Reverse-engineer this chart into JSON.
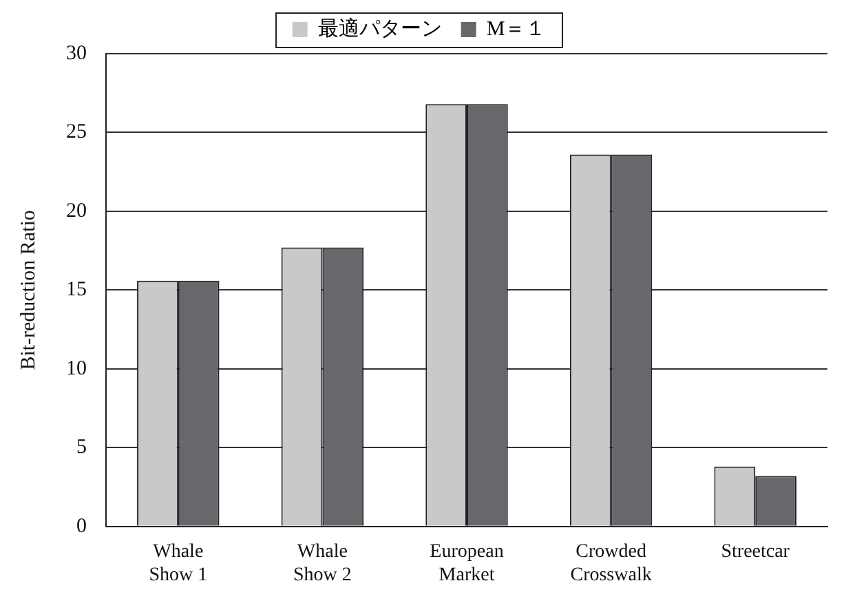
{
  "chart_data": {
    "type": "bar",
    "ylabel": "Bit-reduction Ratio",
    "categories": [
      "Whale\nShow 1",
      "Whale\nShow 2",
      "European\nMarket",
      "Crowded\nCrosswalk",
      "Streetcar"
    ],
    "series": [
      {
        "name": "最適パターン",
        "color": "#c8c9cb",
        "values": [
          15.6,
          17.7,
          26.8,
          23.6,
          3.8
        ]
      },
      {
        "name": "M＝１",
        "color": "#67686c",
        "values": [
          15.6,
          17.7,
          26.8,
          23.6,
          3.2
        ]
      }
    ],
    "ylim": [
      0,
      30
    ],
    "yticks": [
      0,
      5,
      10,
      15,
      20,
      25,
      30
    ],
    "grid": "y",
    "legend": "top"
  }
}
